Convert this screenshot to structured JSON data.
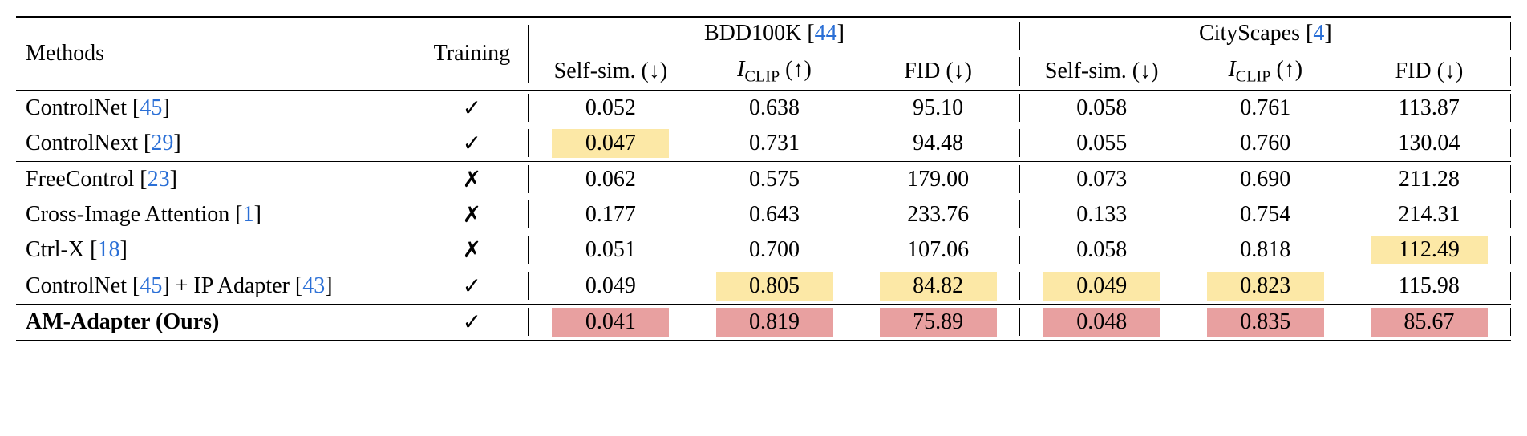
{
  "header": {
    "methods": "Methods",
    "training": "Training",
    "datasets": [
      {
        "name": "BDD100K",
        "cite": "44"
      },
      {
        "name": "CityScapes",
        "cite": "4"
      }
    ],
    "metrics": {
      "selfsim": "Self-sim. (↓)",
      "iclip_html": "<span class='ital'>I</span><span class='sub smallcaps'>CLIP</span> (↑)",
      "fid": "FID (↓)"
    }
  },
  "marks": {
    "check": "✓",
    "cross": "✗"
  },
  "highlight_colors": {
    "best": "#e8a0a0",
    "second": "#fce8a6"
  },
  "groups": [
    {
      "rows": [
        {
          "method": "ControlNet",
          "cite": "45",
          "training": "check",
          "bdd": {
            "selfsim": "0.052",
            "iclip": "0.638",
            "fid": "95.10"
          },
          "city": {
            "selfsim": "0.058",
            "iclip": "0.761",
            "fid": "113.87"
          }
        },
        {
          "method": "ControlNext",
          "cite": "29",
          "training": "check",
          "bdd": {
            "selfsim": "0.047",
            "selfsim_hl": "second",
            "iclip": "0.731",
            "fid": "94.48"
          },
          "city": {
            "selfsim": "0.055",
            "iclip": "0.760",
            "fid": "130.04"
          }
        }
      ]
    },
    {
      "rows": [
        {
          "method": "FreeControl",
          "cite": "23",
          "training": "cross",
          "bdd": {
            "selfsim": "0.062",
            "iclip": "0.575",
            "fid": "179.00"
          },
          "city": {
            "selfsim": "0.073",
            "iclip": "0.690",
            "fid": "211.28"
          }
        },
        {
          "method": "Cross-Image Attention",
          "cite": "1",
          "training": "cross",
          "bdd": {
            "selfsim": "0.177",
            "iclip": "0.643",
            "fid": "233.76"
          },
          "city": {
            "selfsim": "0.133",
            "iclip": "0.754",
            "fid": "214.31"
          }
        },
        {
          "method": "Ctrl-X",
          "cite": "18",
          "training": "cross",
          "bdd": {
            "selfsim": "0.051",
            "iclip": "0.700",
            "fid": "107.06"
          },
          "city": {
            "selfsim": "0.058",
            "iclip": "0.818",
            "fid": "112.49",
            "fid_hl": "second"
          }
        }
      ]
    },
    {
      "rows": [
        {
          "method_html": "ControlNet [<span class='cite'>45</span>] + IP Adapter [<span class='cite'>43</span>]",
          "training": "check",
          "bdd": {
            "selfsim": "0.049",
            "iclip": "0.805",
            "iclip_hl": "second",
            "fid": "84.82",
            "fid_hl": "second"
          },
          "city": {
            "selfsim": "0.049",
            "selfsim_hl": "second",
            "iclip": "0.823",
            "iclip_hl": "second",
            "fid": "115.98"
          }
        }
      ]
    },
    {
      "rows": [
        {
          "method_html": "<span class='bold'>AM-Adapter (Ours)</span>",
          "training": "check",
          "bdd": {
            "selfsim": "0.041",
            "selfsim_hl": "best",
            "iclip": "0.819",
            "iclip_hl": "best",
            "fid": "75.89",
            "fid_hl": "best"
          },
          "city": {
            "selfsim": "0.048",
            "selfsim_hl": "best",
            "iclip": "0.835",
            "iclip_hl": "best",
            "fid": "85.67",
            "fid_hl": "best"
          }
        }
      ]
    }
  ]
}
